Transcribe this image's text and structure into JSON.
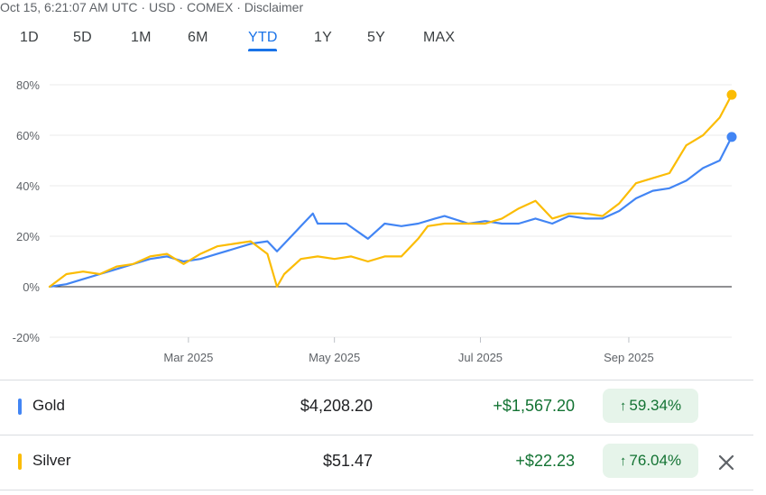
{
  "header": {
    "timestamp": "Oct 15, 6:21:07 AM UTC",
    "currency": "USD",
    "exchange": "COMEX",
    "disclaimer": "Disclaimer",
    "separator": "·"
  },
  "tabs": [
    {
      "label": "1D",
      "active": false
    },
    {
      "label": "5D",
      "active": false
    },
    {
      "label": "1M",
      "active": false
    },
    {
      "label": "6M",
      "active": false
    },
    {
      "label": "YTD",
      "active": true
    },
    {
      "label": "1Y",
      "active": false
    },
    {
      "label": "5Y",
      "active": false
    },
    {
      "label": "MAX",
      "active": false
    }
  ],
  "chart_data": {
    "type": "line",
    "title": "",
    "xlabel": "",
    "ylabel": "",
    "x_ticks": [
      "Mar 2025",
      "May 2025",
      "Jul 2025",
      "Sep 2025"
    ],
    "y_ticks": [
      "80%",
      "60%",
      "40%",
      "20%",
      "0%",
      "-20%"
    ],
    "ylim": [
      -20,
      80
    ],
    "grid": true,
    "series": [
      {
        "name": "Gold",
        "color": "#4285f4",
        "points": [
          [
            "2025-01-02",
            0
          ],
          [
            "2025-01-09",
            1
          ],
          [
            "2025-01-16",
            3
          ],
          [
            "2025-01-23",
            5
          ],
          [
            "2025-01-30",
            7
          ],
          [
            "2025-02-06",
            9
          ],
          [
            "2025-02-13",
            11
          ],
          [
            "2025-02-20",
            12
          ],
          [
            "2025-02-27",
            10
          ],
          [
            "2025-03-06",
            11
          ],
          [
            "2025-03-13",
            13
          ],
          [
            "2025-03-20",
            15
          ],
          [
            "2025-03-27",
            17
          ],
          [
            "2025-04-03",
            18
          ],
          [
            "2025-04-07",
            14
          ],
          [
            "2025-04-10",
            17
          ],
          [
            "2025-04-17",
            24
          ],
          [
            "2025-04-22",
            29
          ],
          [
            "2025-04-24",
            25
          ],
          [
            "2025-04-30",
            25
          ],
          [
            "2025-05-06",
            25
          ],
          [
            "2025-05-12",
            21
          ],
          [
            "2025-05-15",
            19
          ],
          [
            "2025-05-22",
            25
          ],
          [
            "2025-05-29",
            24
          ],
          [
            "2025-06-05",
            25
          ],
          [
            "2025-06-12",
            27
          ],
          [
            "2025-06-16",
            28
          ],
          [
            "2025-06-26",
            25
          ],
          [
            "2025-07-03",
            26
          ],
          [
            "2025-07-10",
            25
          ],
          [
            "2025-07-17",
            25
          ],
          [
            "2025-07-24",
            27
          ],
          [
            "2025-07-31",
            25
          ],
          [
            "2025-08-07",
            28
          ],
          [
            "2025-08-14",
            27
          ],
          [
            "2025-08-21",
            27
          ],
          [
            "2025-08-28",
            30
          ],
          [
            "2025-09-04",
            35
          ],
          [
            "2025-09-11",
            38
          ],
          [
            "2025-09-18",
            39
          ],
          [
            "2025-09-25",
            42
          ],
          [
            "2025-10-02",
            47
          ],
          [
            "2025-10-09",
            50
          ],
          [
            "2025-10-14",
            59.34
          ]
        ]
      },
      {
        "name": "Silver",
        "color": "#fbbc04",
        "points": [
          [
            "2025-01-02",
            0
          ],
          [
            "2025-01-09",
            5
          ],
          [
            "2025-01-16",
            6
          ],
          [
            "2025-01-23",
            5
          ],
          [
            "2025-01-30",
            8
          ],
          [
            "2025-02-06",
            9
          ],
          [
            "2025-02-13",
            12
          ],
          [
            "2025-02-20",
            13
          ],
          [
            "2025-02-27",
            9
          ],
          [
            "2025-03-06",
            13
          ],
          [
            "2025-03-13",
            16
          ],
          [
            "2025-03-20",
            17
          ],
          [
            "2025-03-27",
            18
          ],
          [
            "2025-04-03",
            13
          ],
          [
            "2025-04-07",
            0
          ],
          [
            "2025-04-10",
            5
          ],
          [
            "2025-04-17",
            11
          ],
          [
            "2025-04-24",
            12
          ],
          [
            "2025-05-01",
            11
          ],
          [
            "2025-05-08",
            12
          ],
          [
            "2025-05-15",
            10
          ],
          [
            "2025-05-22",
            12
          ],
          [
            "2025-05-29",
            12
          ],
          [
            "2025-06-05",
            19
          ],
          [
            "2025-06-09",
            24
          ],
          [
            "2025-06-16",
            25
          ],
          [
            "2025-06-26",
            25
          ],
          [
            "2025-07-03",
            25
          ],
          [
            "2025-07-10",
            27
          ],
          [
            "2025-07-17",
            31
          ],
          [
            "2025-07-24",
            34
          ],
          [
            "2025-07-31",
            27
          ],
          [
            "2025-08-07",
            29
          ],
          [
            "2025-08-14",
            29
          ],
          [
            "2025-08-21",
            28
          ],
          [
            "2025-08-28",
            33
          ],
          [
            "2025-09-04",
            41
          ],
          [
            "2025-09-11",
            43
          ],
          [
            "2025-09-18",
            45
          ],
          [
            "2025-09-25",
            56
          ],
          [
            "2025-10-02",
            60
          ],
          [
            "2025-10-09",
            67
          ],
          [
            "2025-10-14",
            76.04
          ]
        ]
      }
    ]
  },
  "quotes": [
    {
      "name": "Gold",
      "color": "#4285f4",
      "price": "$4,208.20",
      "change": "+$1,567.20",
      "percent": "59.34%",
      "arrow": "↑",
      "removable": false
    },
    {
      "name": "Silver",
      "color": "#fbbc04",
      "price": "$51.47",
      "change": "+$22.23",
      "percent": "76.04%",
      "arrow": "↑",
      "removable": true,
      "remove_icon": "close-icon"
    }
  ]
}
